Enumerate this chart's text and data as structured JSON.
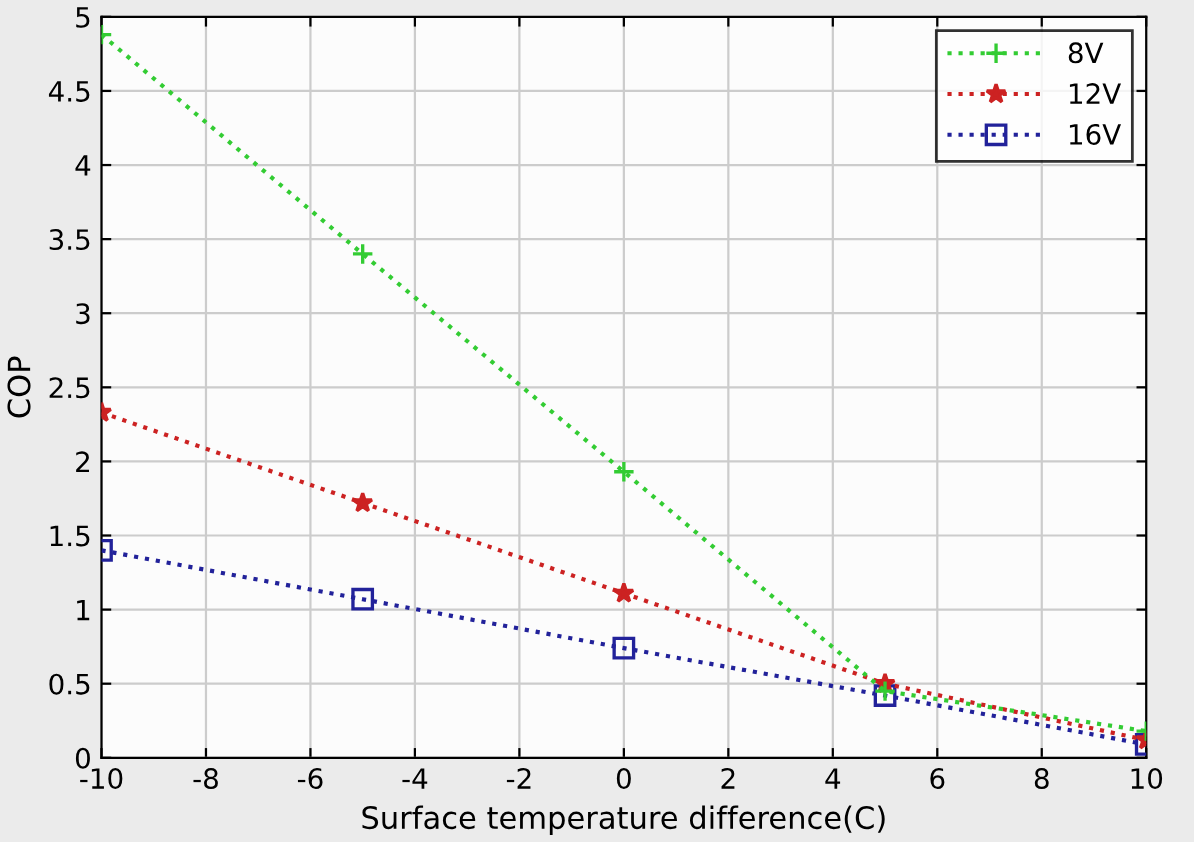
{
  "chart_data": {
    "type": "line",
    "xlabel": "Surface temperature difference(C)",
    "ylabel": "COP",
    "x": [
      -10,
      -5,
      0,
      5,
      10
    ],
    "series": [
      {
        "name": "8V",
        "color": "#33cc33",
        "marker": "cross",
        "values": [
          4.88,
          3.4,
          1.93,
          0.45,
          0.18
        ]
      },
      {
        "name": "12V",
        "color": "#cc2222",
        "marker": "star",
        "values": [
          2.33,
          1.72,
          1.11,
          0.5,
          0.12
        ]
      },
      {
        "name": "16V",
        "color": "#22229a",
        "marker": "square",
        "values": [
          1.4,
          1.07,
          0.74,
          0.42,
          0.09
        ]
      }
    ],
    "line_style": "dotted",
    "grid": true,
    "legend": "top right",
    "xlim": [
      -10,
      10
    ],
    "xticks": [
      -10,
      -8,
      -6,
      -4,
      -2,
      0,
      2,
      4,
      6,
      8,
      10
    ],
    "ylim": [
      0,
      5
    ],
    "yticks": [
      0,
      0.5,
      1,
      1.5,
      2,
      2.5,
      3,
      3.5,
      4,
      4.5,
      5
    ]
  }
}
